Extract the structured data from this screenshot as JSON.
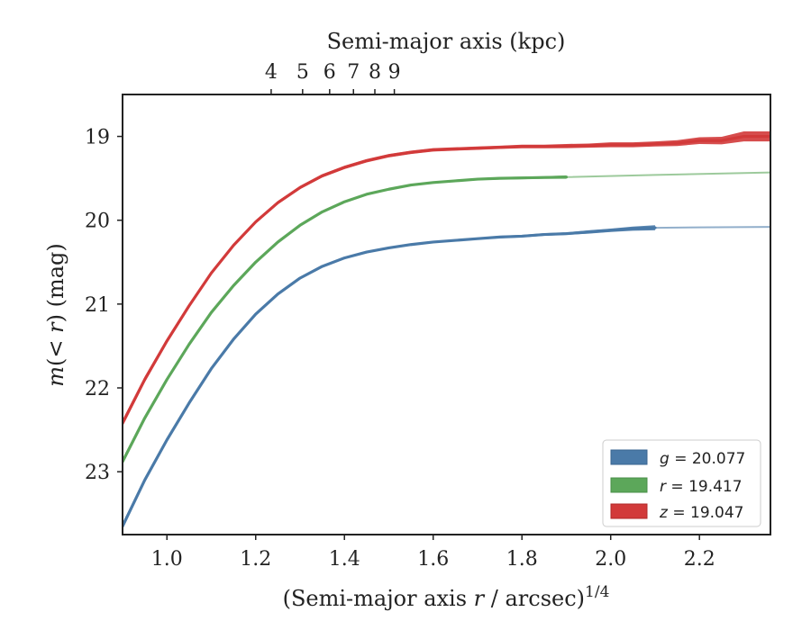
{
  "chart_data": {
    "type": "line",
    "xlabel_parts": [
      "(Semi-major axis ",
      "r",
      " / arcsec)",
      "1/4"
    ],
    "top_xlabel": "Semi-major axis (kpc)",
    "ylabel_parts": [
      "m",
      "(< ",
      "r",
      ") (mag)"
    ],
    "xlim": [
      0.9,
      2.36
    ],
    "ylim": [
      23.75,
      18.5
    ],
    "y_inverted": true,
    "x_ticks": [
      "1.0",
      "1.2",
      "1.4",
      "1.6",
      "1.8",
      "2.0",
      "2.2"
    ],
    "y_ticks": [
      "19",
      "20",
      "21",
      "22",
      "23"
    ],
    "top_x_ticks": [
      "4",
      "5",
      "6",
      "7",
      "8",
      "9"
    ],
    "top_axis_kpc_per_bottom_pow4": 1.72,
    "grid": false,
    "legend": {
      "position": "lower-right",
      "entries": [
        {
          "var": "g",
          "value": "20.077"
        },
        {
          "var": "r",
          "value": "19.417"
        },
        {
          "var": "z",
          "value": "19.047"
        }
      ]
    },
    "series": [
      {
        "band": "g",
        "color": "#4a7aa8",
        "x": [
          0.9,
          0.95,
          1.0,
          1.05,
          1.1,
          1.15,
          1.2,
          1.25,
          1.3,
          1.35,
          1.4,
          1.45,
          1.5,
          1.55,
          1.6,
          1.65,
          1.7,
          1.75,
          1.8,
          1.85,
          1.9,
          1.95,
          2.0,
          2.05,
          2.1
        ],
        "y": [
          23.65,
          23.1,
          22.62,
          22.18,
          21.77,
          21.42,
          21.12,
          20.88,
          20.69,
          20.55,
          20.45,
          20.38,
          20.33,
          20.29,
          20.26,
          20.24,
          20.22,
          20.2,
          20.19,
          20.17,
          20.16,
          20.14,
          20.12,
          20.1,
          20.09
        ],
        "extension": {
          "x": [
            2.1,
            2.2,
            2.36
          ],
          "y": [
            20.09,
            20.085,
            20.08
          ]
        },
        "band_halfwidth": [
          0.04,
          0.03,
          0.02,
          0.02,
          0.015,
          0.015,
          0.012,
          0.01,
          0.01,
          0.01,
          0.01,
          0.01,
          0.01,
          0.01,
          0.012,
          0.012,
          0.012,
          0.015,
          0.015,
          0.015,
          0.015,
          0.02,
          0.02,
          0.025,
          0.03
        ]
      },
      {
        "band": "r",
        "color": "#5ca75a",
        "x": [
          0.9,
          0.95,
          1.0,
          1.05,
          1.1,
          1.15,
          1.2,
          1.25,
          1.3,
          1.35,
          1.4,
          1.45,
          1.5,
          1.55,
          1.6,
          1.65,
          1.7,
          1.75,
          1.8,
          1.85,
          1.9
        ],
        "y": [
          22.88,
          22.36,
          21.9,
          21.48,
          21.1,
          20.78,
          20.5,
          20.26,
          20.06,
          19.9,
          19.78,
          19.69,
          19.63,
          19.58,
          19.55,
          19.53,
          19.51,
          19.5,
          19.495,
          19.49,
          19.485
        ],
        "extension": {
          "x": [
            1.9,
            2.1,
            2.36
          ],
          "y": [
            19.485,
            19.46,
            19.43
          ]
        },
        "band_halfwidth": [
          0.035,
          0.03,
          0.02,
          0.02,
          0.015,
          0.015,
          0.012,
          0.012,
          0.01,
          0.01,
          0.01,
          0.01,
          0.01,
          0.01,
          0.01,
          0.012,
          0.012,
          0.015,
          0.015,
          0.015,
          0.02
        ]
      },
      {
        "band": "z",
        "color": "#d23a3a",
        "x": [
          0.9,
          0.95,
          1.0,
          1.05,
          1.1,
          1.15,
          1.2,
          1.25,
          1.3,
          1.35,
          1.4,
          1.45,
          1.5,
          1.55,
          1.6,
          1.65,
          1.7,
          1.75,
          1.8,
          1.85,
          1.9,
          1.95,
          2.0,
          2.05,
          2.1,
          2.15,
          2.2,
          2.25,
          2.3,
          2.36
        ],
        "y": [
          22.42,
          21.9,
          21.44,
          21.02,
          20.63,
          20.3,
          20.02,
          19.79,
          19.61,
          19.47,
          19.37,
          19.29,
          19.23,
          19.19,
          19.16,
          19.15,
          19.14,
          19.13,
          19.12,
          19.12,
          19.115,
          19.11,
          19.1,
          19.1,
          19.09,
          19.08,
          19.05,
          19.05,
          19.0,
          19.0
        ],
        "band_halfwidth": [
          0.04,
          0.035,
          0.03,
          0.025,
          0.02,
          0.02,
          0.02,
          0.02,
          0.02,
          0.02,
          0.02,
          0.02,
          0.02,
          0.02,
          0.02,
          0.02,
          0.02,
          0.02,
          0.022,
          0.022,
          0.025,
          0.025,
          0.03,
          0.03,
          0.03,
          0.035,
          0.04,
          0.045,
          0.06,
          0.06
        ]
      }
    ]
  }
}
